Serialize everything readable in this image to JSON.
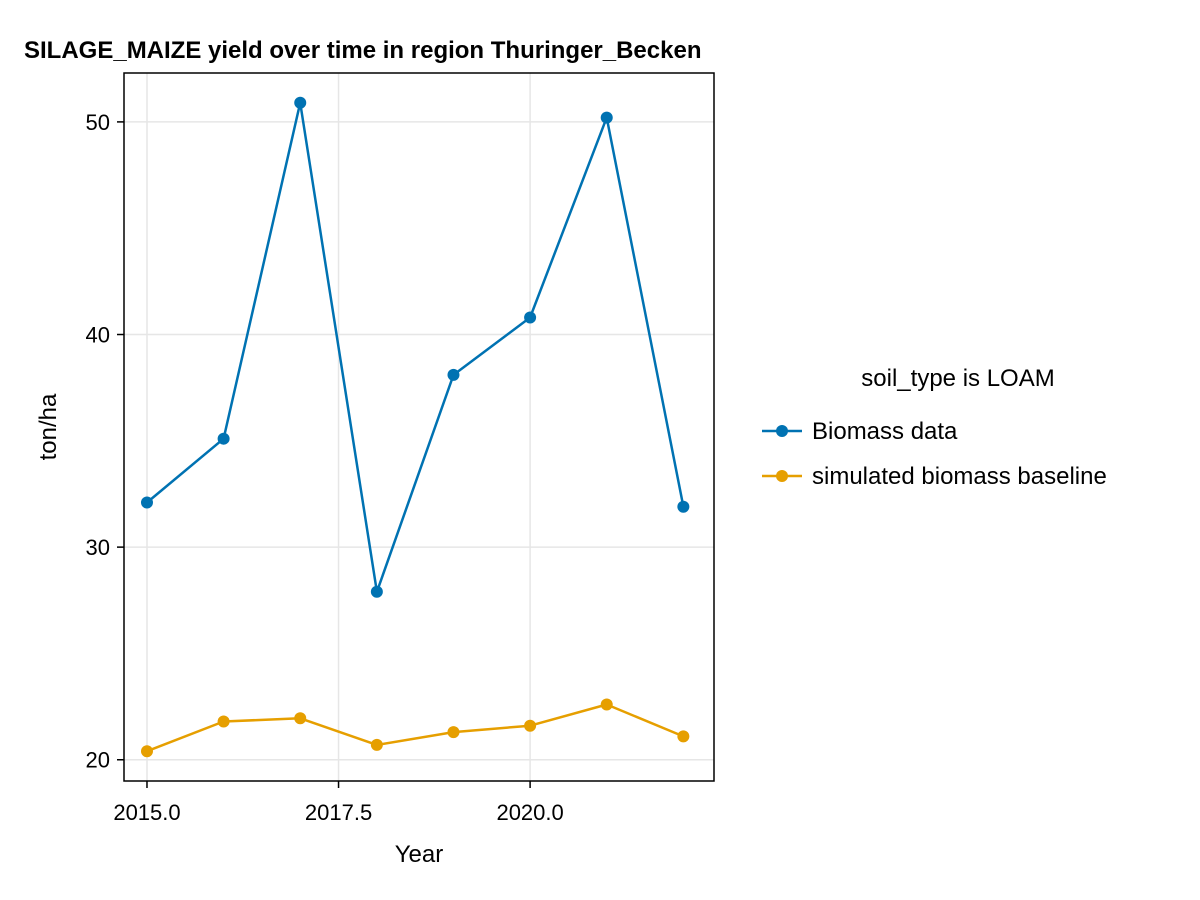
{
  "chart_data": {
    "type": "line",
    "title": "SILAGE_MAIZE yield over time in region Thuringer_Becken",
    "xlabel": "Year",
    "ylabel": "ton/ha",
    "xlim": [
      2014.7,
      2022.4
    ],
    "ylim": [
      19,
      52.3
    ],
    "x_ticks": [
      2015.0,
      2017.5,
      2020.0
    ],
    "x_tick_labels": [
      "2015.0",
      "2017.5",
      "2020.0"
    ],
    "y_ticks": [
      20,
      30,
      40,
      50
    ],
    "y_tick_labels": [
      "20",
      "30",
      "40",
      "50"
    ],
    "grid": true,
    "legend_title": "soil_type is LOAM",
    "legend_position": "right",
    "x": [
      2015,
      2016,
      2017,
      2018,
      2019,
      2020,
      2021,
      2022
    ],
    "series": [
      {
        "name": "Biomass data",
        "color": "#0072b2",
        "values": [
          32.1,
          35.1,
          50.9,
          27.9,
          38.1,
          40.8,
          50.2,
          31.9
        ]
      },
      {
        "name": "simulated biomass baseline",
        "color": "#e69f00",
        "values": [
          20.4,
          21.8,
          21.95,
          20.7,
          21.3,
          21.6,
          22.6,
          21.1
        ]
      }
    ]
  }
}
